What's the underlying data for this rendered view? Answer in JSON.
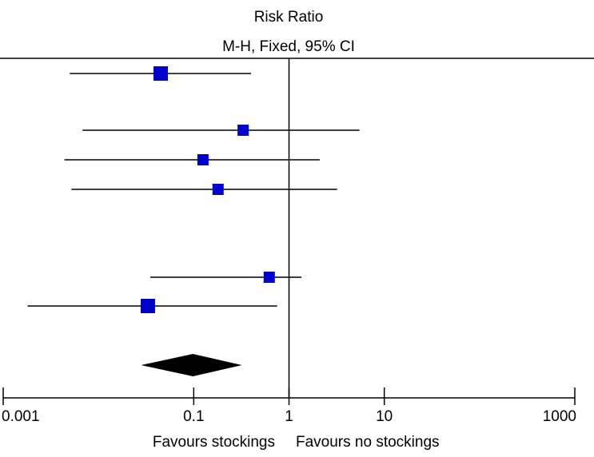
{
  "chart_data": {
    "type": "forest",
    "title": "Risk Ratio",
    "subtitle": "M-H, Fixed, 95% CI",
    "x_scale": "log",
    "xlim": [
      0.001,
      1000
    ],
    "null_value": 1,
    "x_ticks": [
      {
        "value": 0.001,
        "label": "0.001"
      },
      {
        "value": 0.1,
        "label": "0.1"
      },
      {
        "value": 1,
        "label": "1"
      },
      {
        "value": 10,
        "label": "10"
      },
      {
        "value": 1000,
        "label": "1000"
      }
    ],
    "favours_left": "Favours stockings",
    "favours_right": "Favours no stockings",
    "studies": [
      {
        "rr": 0.045,
        "lower": 0.005,
        "upper": 0.4,
        "weight": "large"
      },
      {
        "rr": 0.33,
        "lower": 0.0068,
        "upper": 5.5,
        "weight": "small"
      },
      {
        "rr": 0.125,
        "lower": 0.0044,
        "upper": 2.1,
        "weight": "small"
      },
      {
        "rr": 0.18,
        "lower": 0.0052,
        "upper": 3.2,
        "weight": "small"
      },
      {
        "rr": 0.62,
        "lower": 0.035,
        "upper": 1.35,
        "weight": "small"
      },
      {
        "rr": 0.033,
        "lower": 0.0018,
        "upper": 0.75,
        "weight": "large"
      }
    ],
    "pooled": {
      "rr": 0.098,
      "lower": 0.028,
      "upper": 0.32
    },
    "colors": {
      "marker": "#0000cc",
      "pooled": "#000000",
      "lines": "#000000"
    }
  }
}
